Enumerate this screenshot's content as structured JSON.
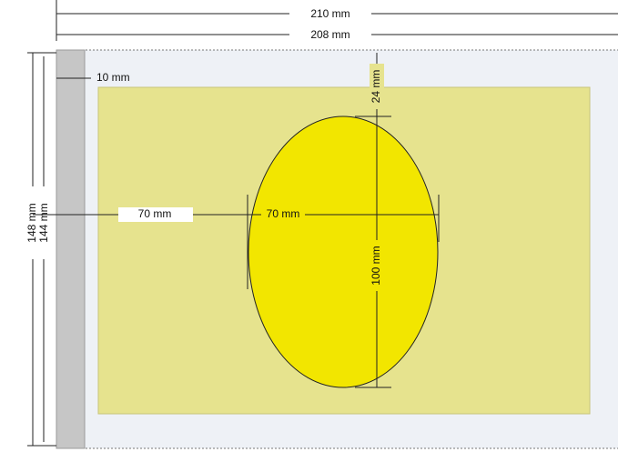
{
  "dimensions": {
    "total_width": "210 mm",
    "inner_width": "208 mm",
    "margin_left": "10 mm",
    "top_offset": "24 mm",
    "left_offset": "70 mm",
    "ellipse_width": "70 mm",
    "ellipse_height": "100 mm",
    "total_height": "148 mm",
    "inner_height": "144 mm"
  }
}
